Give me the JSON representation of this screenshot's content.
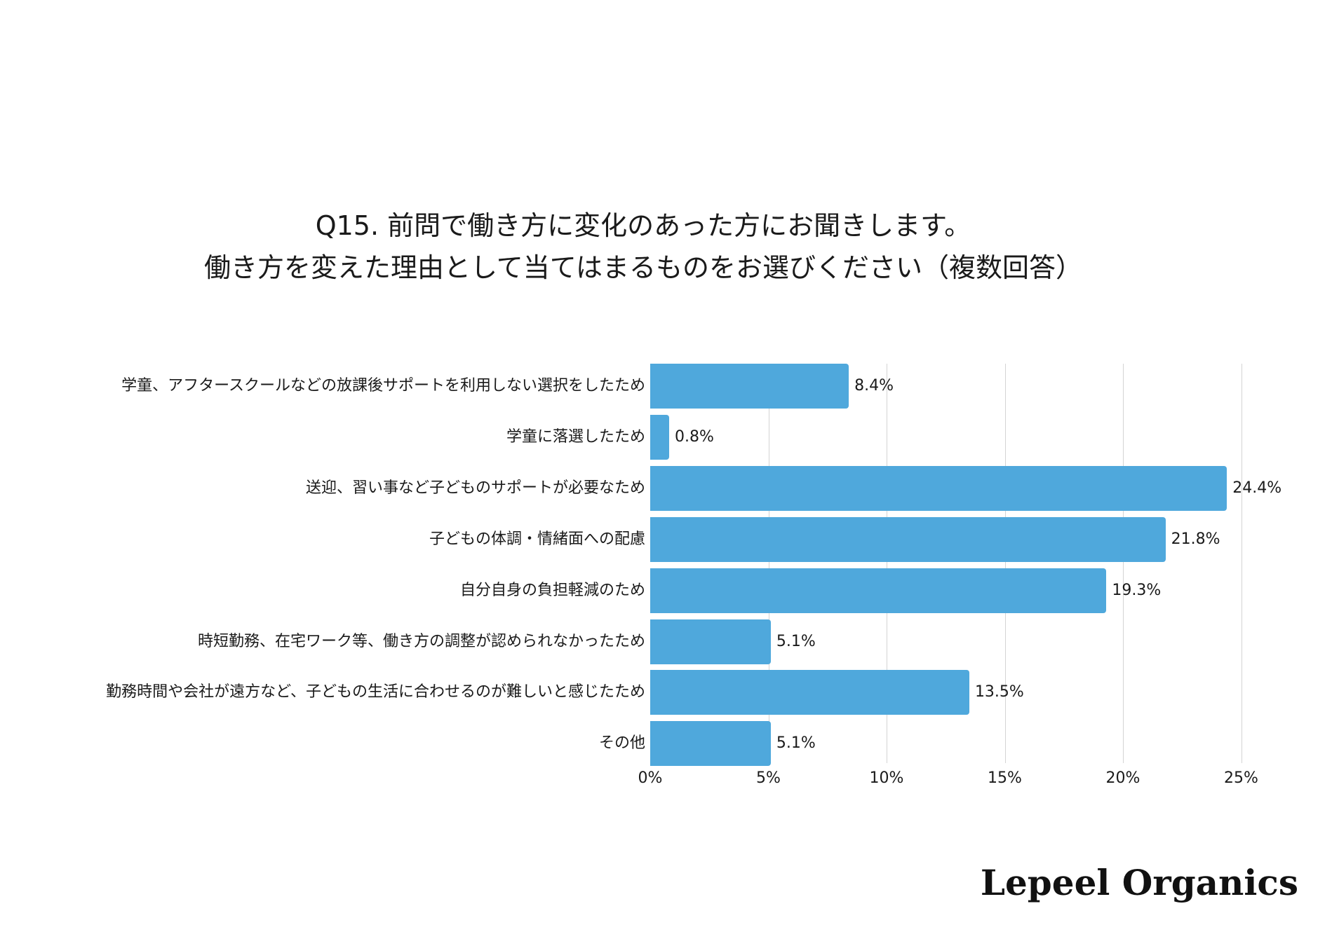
{
  "title": {
    "line1": "Q15. 前問で働き方に変化のあった方にお聞きします。",
    "line2": "働き方を変えた理由として当てはまるものをお選びください（複数回答）"
  },
  "brand": {
    "logo_text": "Lepeel Organics"
  },
  "colors": {
    "bar": "#4FA8DC",
    "grid": "#d4d4d4",
    "text": "#1a1a1a"
  },
  "chart_data": {
    "type": "bar",
    "orientation": "horizontal",
    "title": "Q15. 前問で働き方に変化のあった方にお聞きします。働き方を変えた理由として当てはまるものをお選びください（複数回答）",
    "xlabel": "",
    "ylabel": "",
    "xlim": [
      0,
      25
    ],
    "grid": true,
    "legend": null,
    "categories": [
      "学童、アフタースクールなどの放課後サポートを利用しない選択をしたため",
      "学童に落選したため",
      "送迎、習い事など子どものサポートが必要なため",
      "子どもの体調・情緒面への配慮",
      "自分自身の負担軽減のため",
      "時短勤務、在宅ワーク等、働き方の調整が認められなかったため",
      "勤務時間や会社が遠方など、子どもの生活に合わせるのが難しいと感じたため",
      "その他"
    ],
    "values": [
      8.4,
      0.8,
      24.4,
      21.8,
      19.3,
      5.1,
      13.5,
      5.1
    ],
    "value_labels": [
      "8.4%",
      "0.8%",
      "24.4%",
      "21.8%",
      "19.3%",
      "5.1%",
      "13.5%",
      "5.1%"
    ],
    "x_ticks": [
      0,
      5,
      10,
      15,
      20,
      25
    ],
    "x_tick_labels": [
      "0%",
      "5%",
      "10%",
      "15%",
      "20%",
      "25%"
    ]
  }
}
